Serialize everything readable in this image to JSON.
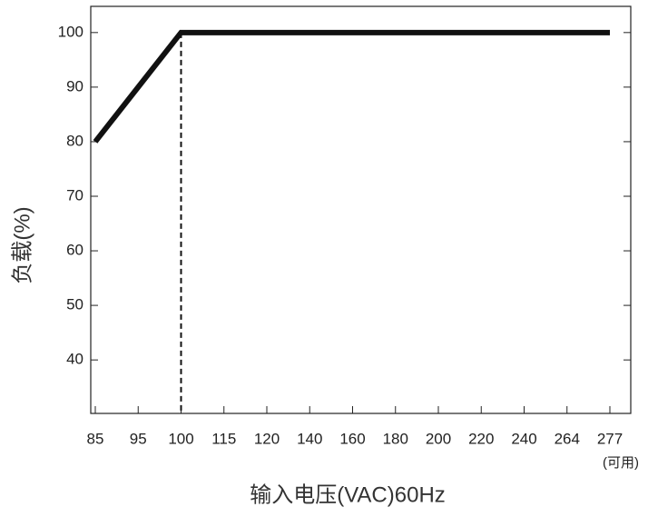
{
  "chart_data": {
    "type": "line",
    "x_label": "输入电压(VAC)60Hz",
    "y_label": "负载(%)",
    "annotation": "(可用)",
    "categories": [
      "85",
      "95",
      "100",
      "115",
      "120",
      "140",
      "160",
      "180",
      "200",
      "220",
      "240",
      "264",
      "277"
    ],
    "series": [
      {
        "name": "负载",
        "color": "#111111",
        "values": [
          80,
          90,
          100,
          100,
          100,
          100,
          100,
          100,
          100,
          100,
          100,
          100,
          100
        ]
      }
    ],
    "ylim": [
      30.2,
      104.8
    ],
    "yticks": [
      40,
      50,
      60,
      70,
      80,
      90,
      100
    ],
    "grid": false
  }
}
